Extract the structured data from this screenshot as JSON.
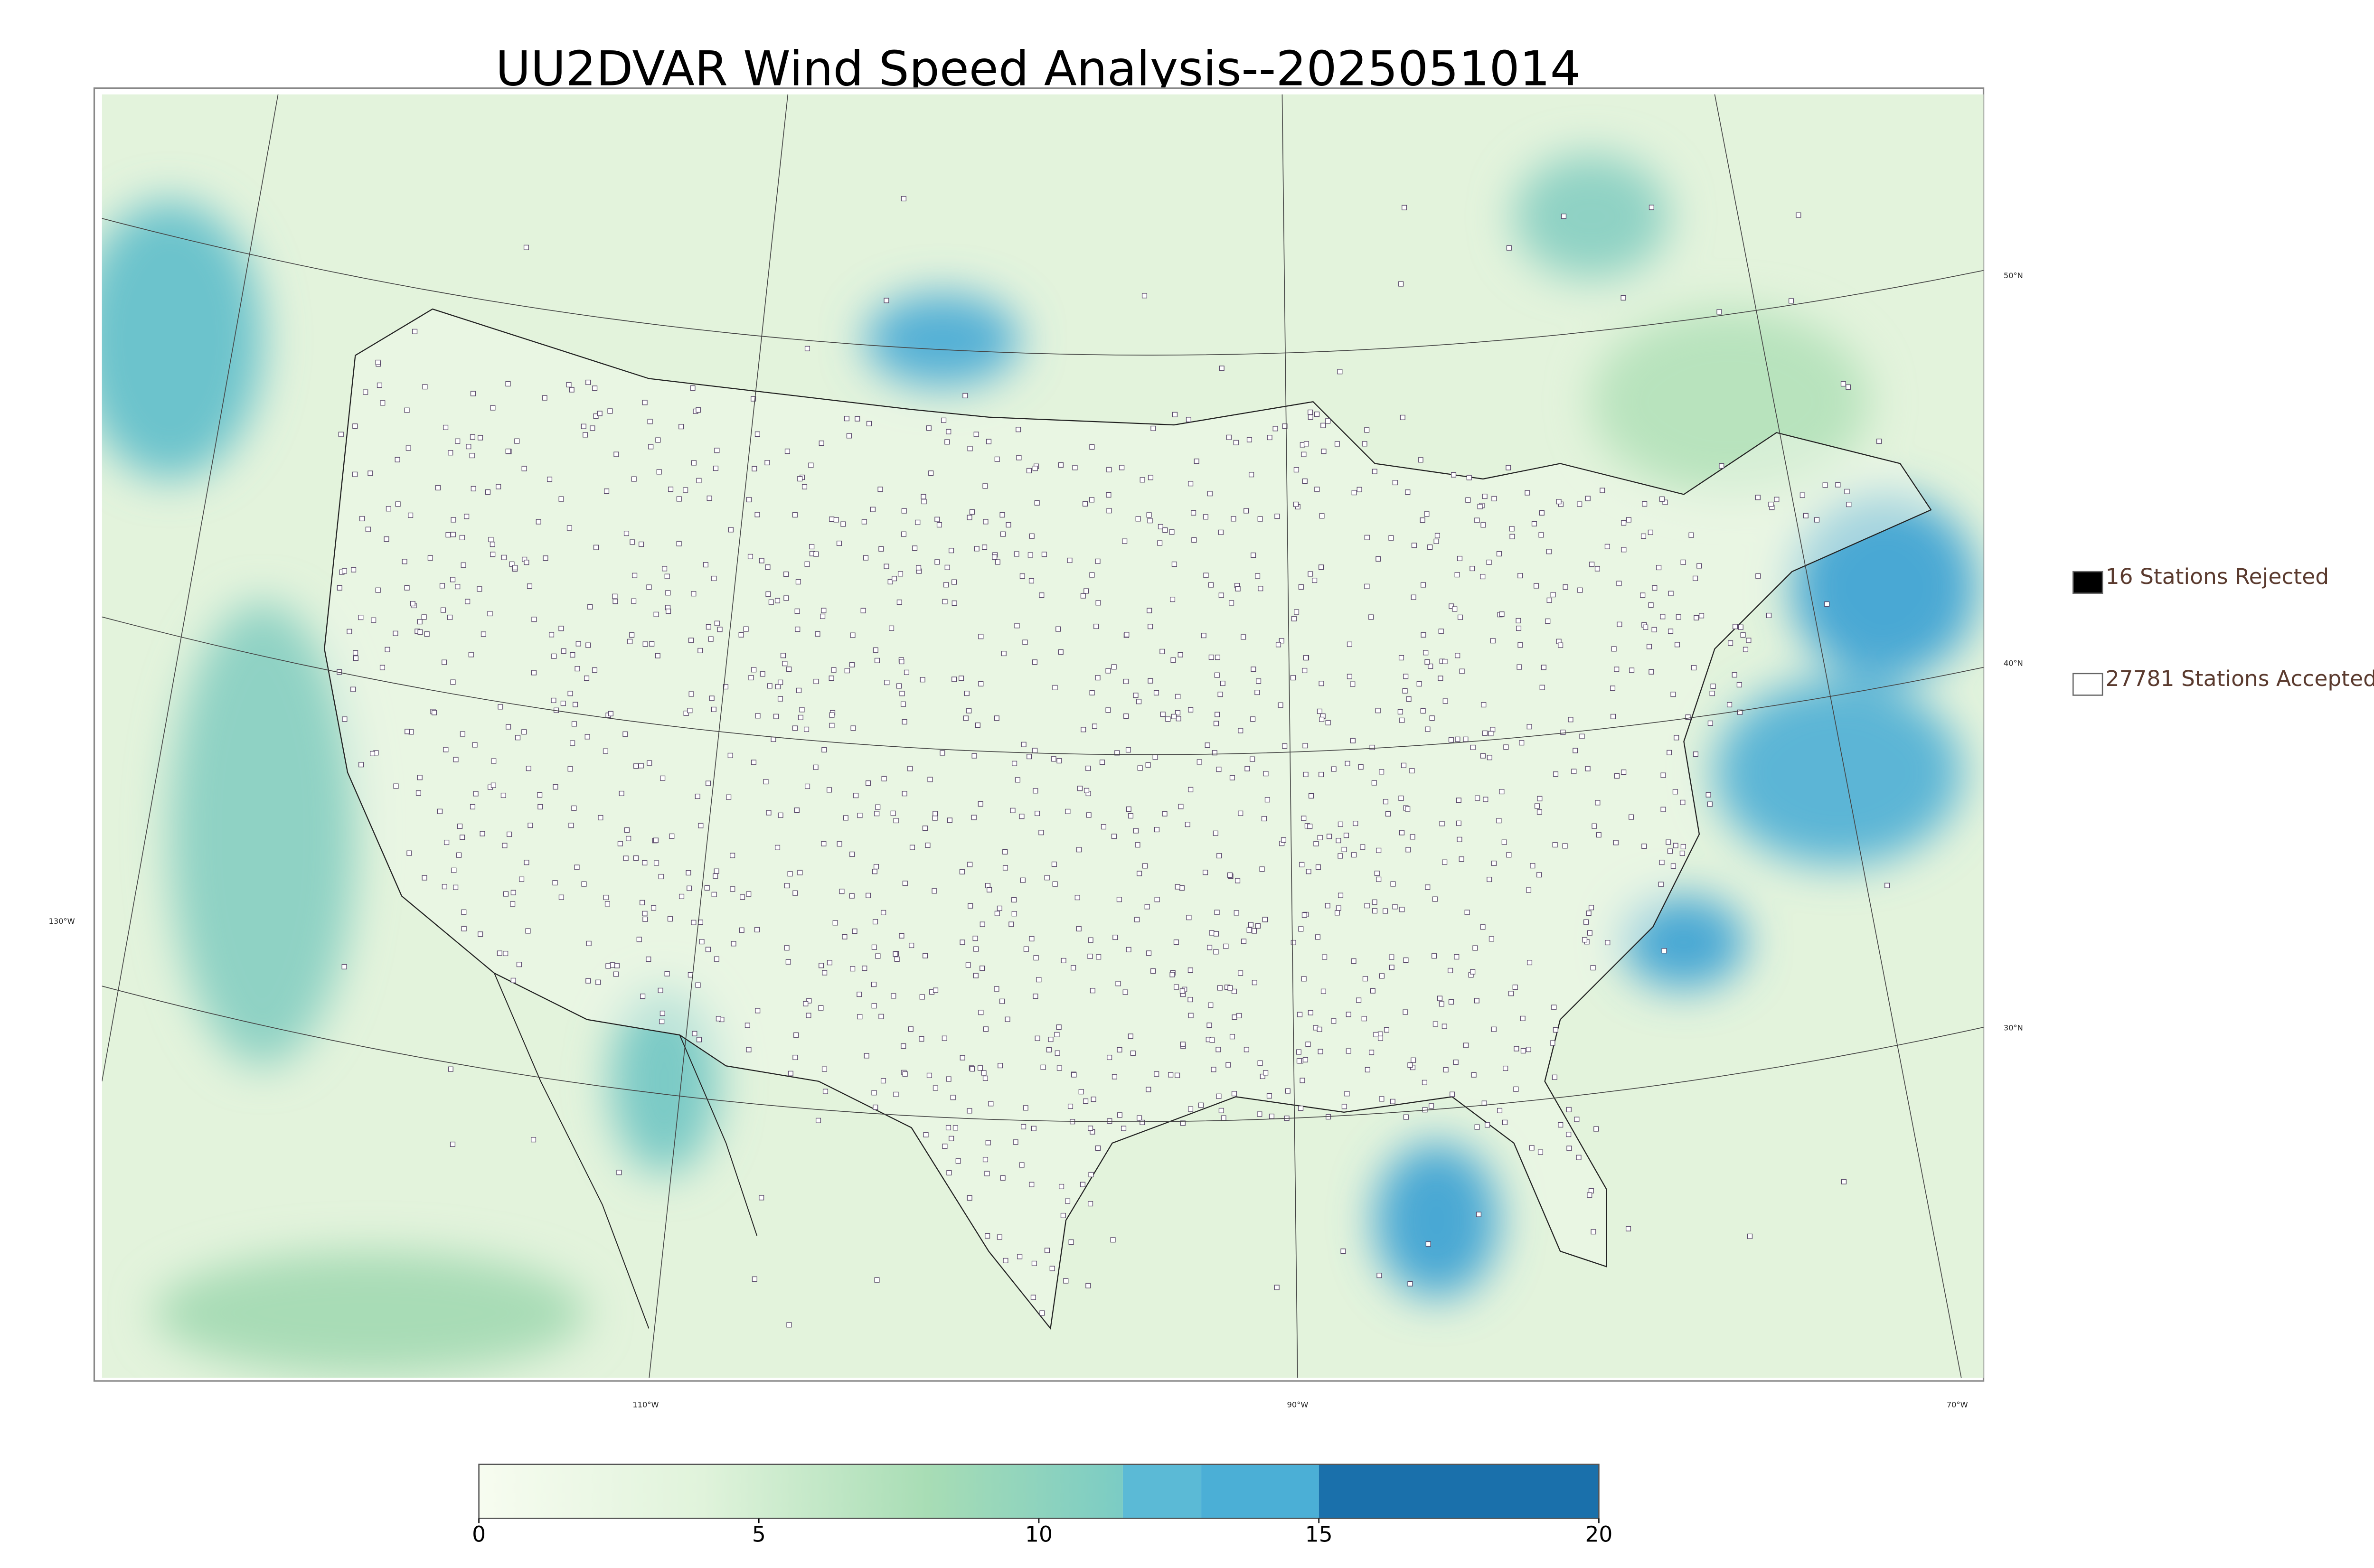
{
  "title": "UU2DVAR Wind Speed Analysis--2025051014",
  "legend": [
    {
      "label": "16 Stations Rejected",
      "fill": "#000000",
      "text_color": "#5a3a2e"
    },
    {
      "label": "27781 Stations Accepted",
      "fill": "#ffffff",
      "text_color": "#5a3a2e"
    }
  ],
  "graticule": {
    "latitudes": [
      "50°N",
      "40°N",
      "30°N"
    ],
    "longitudes": [
      "130°W",
      "110°W",
      "90°W",
      "70°W"
    ]
  },
  "colorbar": {
    "lim": [
      0,
      20
    ],
    "ticks": [
      0,
      5,
      10,
      15,
      20
    ],
    "gradient": [
      {
        "value": 0,
        "color": "#f7fcf0"
      },
      {
        "value": 4,
        "color": "#e0f3db"
      },
      {
        "value": 8,
        "color": "#a8ddb5"
      },
      {
        "value": 11.5,
        "color": "#7bccc4"
      }
    ],
    "bands": [
      {
        "from": 11.5,
        "to": 12.9,
        "color": "#5bbad6"
      },
      {
        "from": 12.9,
        "to": 15,
        "color": "#4bafd6"
      },
      {
        "from": 15,
        "to": 20,
        "color": "#1a70ab"
      }
    ]
  }
}
